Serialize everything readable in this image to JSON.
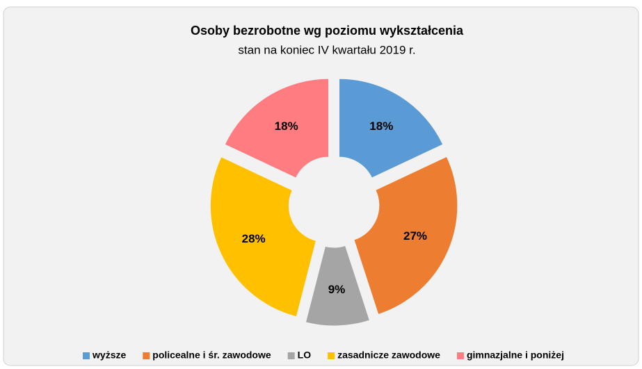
{
  "chart_data": {
    "type": "pie",
    "title": "Osoby bezrobotne wg poziomu wykształcenia",
    "subtitle": "stan na koniec IV kwartału 2019 r.",
    "categories": [
      "wyższe",
      "policealne i śr. zawodowe",
      "LO",
      "zasadnicze zawodowe",
      "gimnazjalne i poniżej"
    ],
    "values": [
      18,
      27,
      9,
      28,
      18
    ],
    "value_labels": [
      "18%",
      "27%",
      "9%",
      "28%",
      "18%"
    ],
    "colors": [
      "#5b9bd5",
      "#ed7d31",
      "#a5a5a5",
      "#ffc000",
      "#ff7c80"
    ],
    "legend": "bottom"
  }
}
